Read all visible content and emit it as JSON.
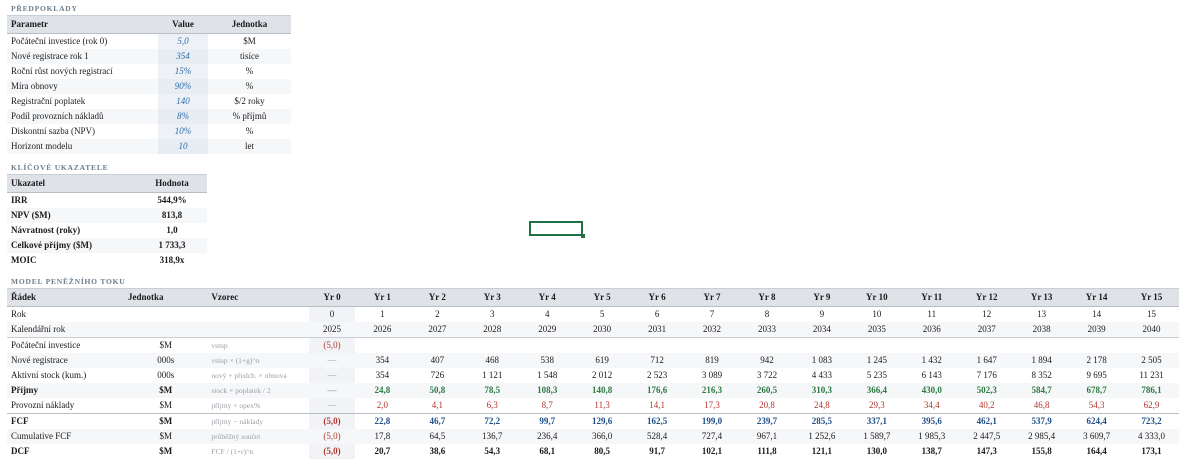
{
  "sections": {
    "assumptions": "PŘEDPOKLADY",
    "kpi": "KLÍČOVÉ UKAZATELE",
    "model": "MODEL PENĚŽNÍHO TOKU"
  },
  "assumptions": {
    "headers": [
      "Parametr",
      "Value",
      "Jednotka"
    ],
    "rows": [
      {
        "param": "Počáteční investice (rok 0)",
        "value": "5,0",
        "unit": "$M"
      },
      {
        "param": "Nové registrace rok 1",
        "value": "354",
        "unit": "tisíce"
      },
      {
        "param": "Roční růst nových registrací",
        "value": "15%",
        "unit": "%"
      },
      {
        "param": "Míra obnovy",
        "value": "90%",
        "unit": "%"
      },
      {
        "param": "Registrační poplatek",
        "value": "140",
        "unit": "$/2 roky"
      },
      {
        "param": "Podíl provozních nákladů",
        "value": "8%",
        "unit": "% příjmů"
      },
      {
        "param": "Diskontní sazba (NPV)",
        "value": "10%",
        "unit": "%"
      },
      {
        "param": "Horizont modelu",
        "value": "10",
        "unit": "let"
      }
    ]
  },
  "kpi": {
    "headers": [
      "Ukazatel",
      "Hodnota"
    ],
    "rows": [
      {
        "label": "IRR",
        "value": "544,9%"
      },
      {
        "label": "NPV ($M)",
        "value": "813,8"
      },
      {
        "label": "Návratnost (roky)",
        "value": "1,0"
      },
      {
        "label": "Celkové příjmy ($M)",
        "value": "1 733,3"
      },
      {
        "label": "MOIC",
        "value": "318,9x"
      }
    ]
  },
  "model": {
    "headers": [
      "Řádek",
      "Jednotka",
      "Vzorec",
      "Yr 0",
      "Yr 1",
      "Yr 2",
      "Yr 3",
      "Yr 4",
      "Yr 5",
      "Yr 6",
      "Yr 7",
      "Yr 8",
      "Yr 9",
      "Yr 10",
      "Yr 11",
      "Yr 12",
      "Yr 13",
      "Yr 14",
      "Yr 15"
    ],
    "rows": [
      {
        "label": "Rok",
        "unit": "",
        "formula": "",
        "values": [
          "0",
          "1",
          "2",
          "3",
          "4",
          "5",
          "6",
          "7",
          "8",
          "9",
          "10",
          "11",
          "12",
          "13",
          "14",
          "15"
        ]
      },
      {
        "label": "Kalendářní rok",
        "unit": "",
        "formula": "",
        "values": [
          "2025",
          "2026",
          "2027",
          "2028",
          "2029",
          "2030",
          "2031",
          "2032",
          "2033",
          "2034",
          "2035",
          "2036",
          "2037",
          "2038",
          "2039",
          "2040"
        ]
      },
      {
        "label": "Počáteční investice",
        "unit": "$M",
        "formula": "vstup",
        "values": [
          "(5,0)",
          "",
          "",
          "",
          "",
          "",
          "",
          "",
          "",
          "",
          "",
          "",
          "",
          "",
          "",
          ""
        ]
      },
      {
        "label": "Nové registrace",
        "unit": "000s",
        "formula": "vstup × (1+g)^n",
        "values": [
          "—",
          "354",
          "407",
          "468",
          "538",
          "619",
          "712",
          "819",
          "942",
          "1 083",
          "1 245",
          "1 432",
          "1 647",
          "1 894",
          "2 178",
          "2 505"
        ]
      },
      {
        "label": "Aktivní stock (kum.)",
        "unit": "000s",
        "formula": "nový + předch. × obnova",
        "values": [
          "—",
          "354",
          "726",
          "1 121",
          "1 548",
          "2 012",
          "2 523",
          "3 089",
          "3 722",
          "4 433",
          "5 235",
          "6 143",
          "7 176",
          "8 352",
          "9 695",
          "11 231"
        ]
      },
      {
        "label": "Příjmy",
        "unit": "$M",
        "formula": "stock × poplatek / 2",
        "values": [
          "—",
          "24,8",
          "50,8",
          "78,5",
          "108,3",
          "140,8",
          "176,6",
          "216,3",
          "260,5",
          "310,3",
          "366,4",
          "430,0",
          "502,3",
          "584,7",
          "678,7",
          "786,1"
        ]
      },
      {
        "label": "Provozní náklady",
        "unit": "$M",
        "formula": "příjmy × opex%",
        "values": [
          "—",
          "2,0",
          "4,1",
          "6,3",
          "8,7",
          "11,3",
          "14,1",
          "17,3",
          "20,8",
          "24,8",
          "29,3",
          "34,4",
          "40,2",
          "46,8",
          "54,3",
          "62,9"
        ]
      },
      {
        "label": "FCF",
        "unit": "$M",
        "formula": "příjmy − náklady",
        "values": [
          "(5,0)",
          "22,8",
          "46,7",
          "72,2",
          "99,7",
          "129,6",
          "162,5",
          "199,0",
          "239,7",
          "285,5",
          "337,1",
          "395,6",
          "462,1",
          "537,9",
          "624,4",
          "723,2"
        ]
      },
      {
        "label": "Cumulative FCF",
        "unit": "$M",
        "formula": "průběžný součet",
        "values": [
          "(5,0)",
          "17,8",
          "64,5",
          "136,7",
          "236,4",
          "366,0",
          "528,4",
          "727,4",
          "967,1",
          "1 252,6",
          "1 589,7",
          "1 985,3",
          "2 447,5",
          "2 985,4",
          "3 609,7",
          "4 333,0"
        ]
      },
      {
        "label": "DCF",
        "unit": "$M",
        "formula": "FCF / (1+r)^n",
        "values": [
          "(5,0)",
          "20,7",
          "38,6",
          "54,3",
          "68,1",
          "80,5",
          "91,7",
          "102,1",
          "111,8",
          "121,1",
          "130,0",
          "138,7",
          "147,3",
          "155,8",
          "164,4",
          "173,1"
        ]
      }
    ]
  },
  "colors": {
    "input_blue": "#2d6aa8",
    "negative_red": "#b0362d",
    "positive_green": "#2e7a43",
    "header_gray": "#dfe3e8",
    "selection_green": "#1e7145"
  }
}
